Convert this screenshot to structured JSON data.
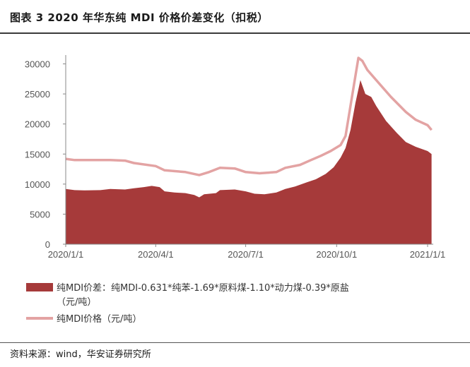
{
  "title": "图表 3 2020 年华东纯 MDI 价格价差变化（扣税）",
  "source": "资料来源：wind，华安证券研究所",
  "chart_data": {
    "type": "area",
    "x_start": "2020/1/1",
    "x_end": "2021/1/1",
    "xticks": [
      "2020/1/1",
      "2020/4/1",
      "2020/7/1",
      "2020/10/1",
      "2021/1/1"
    ],
    "yticks": [
      "0",
      "5000",
      "10000",
      "15000",
      "20000",
      "25000",
      "30000"
    ],
    "ylim": [
      0,
      31000
    ],
    "grid": false,
    "legend_position": "bottom",
    "series": [
      {
        "name": "纯MDI价差：纯MDI-0.631*纯苯-1.69*原料煤-1.10*动力煤-0.39*原盐（元/吨）",
        "legend_line1": "纯MDI价差：纯MDI-0.631*纯苯-1.69*原料煤-1.10*动力煤-0.39*原盐",
        "legend_line2": "（元/吨）",
        "render": "area",
        "color": "#A63A3A",
        "points": [
          [
            "2020/1/1",
            9200
          ],
          [
            "2020/1/10",
            9000
          ],
          [
            "2020/1/20",
            8950
          ],
          [
            "2020/2/5",
            9000
          ],
          [
            "2020/2/15",
            9200
          ],
          [
            "2020/3/1",
            9100
          ],
          [
            "2020/3/10",
            9300
          ],
          [
            "2020/3/20",
            9500
          ],
          [
            "2020/3/28",
            9700
          ],
          [
            "2020/4/5",
            9500
          ],
          [
            "2020/4/10",
            8800
          ],
          [
            "2020/4/20",
            8600
          ],
          [
            "2020/5/1",
            8500
          ],
          [
            "2020/5/10",
            8200
          ],
          [
            "2020/5/15",
            7800
          ],
          [
            "2020/5/20",
            8300
          ],
          [
            "2020/6/1",
            8500
          ],
          [
            "2020/6/5",
            9000
          ],
          [
            "2020/6/20",
            9100
          ],
          [
            "2020/7/1",
            8800
          ],
          [
            "2020/7/10",
            8400
          ],
          [
            "2020/7/20",
            8300
          ],
          [
            "2020/8/1",
            8600
          ],
          [
            "2020/8/10",
            9200
          ],
          [
            "2020/8/20",
            9600
          ],
          [
            "2020/9/1",
            10300
          ],
          [
            "2020/9/10",
            10800
          ],
          [
            "2020/9/20",
            11700
          ],
          [
            "2020/9/28",
            12800
          ],
          [
            "2020/10/5",
            14400
          ],
          [
            "2020/10/10",
            16000
          ],
          [
            "2020/10/15",
            19000
          ],
          [
            "2020/10/20",
            23500
          ],
          [
            "2020/10/25",
            27300
          ],
          [
            "2020/10/30",
            25000
          ],
          [
            "2020/11/5",
            24500
          ],
          [
            "2020/11/10",
            23000
          ],
          [
            "2020/11/20",
            20500
          ],
          [
            "2020/12/1",
            18500
          ],
          [
            "2020/12/10",
            17000
          ],
          [
            "2020/12/20",
            16200
          ],
          [
            "2021/1/1",
            15500
          ],
          [
            "2021/1/5",
            15000
          ]
        ]
      },
      {
        "name": "纯MDI价格（元/吨）",
        "render": "line",
        "color": "#E3A3A3",
        "points": [
          [
            "2020/1/1",
            14200
          ],
          [
            "2020/1/10",
            14000
          ],
          [
            "2020/2/15",
            14000
          ],
          [
            "2020/3/1",
            13900
          ],
          [
            "2020/3/10",
            13500
          ],
          [
            "2020/4/1",
            13000
          ],
          [
            "2020/4/10",
            12300
          ],
          [
            "2020/5/1",
            12000
          ],
          [
            "2020/5/15",
            11500
          ],
          [
            "2020/5/25",
            12000
          ],
          [
            "2020/6/5",
            12700
          ],
          [
            "2020/6/20",
            12600
          ],
          [
            "2020/7/1",
            12000
          ],
          [
            "2020/7/15",
            11800
          ],
          [
            "2020/8/1",
            12000
          ],
          [
            "2020/8/10",
            12700
          ],
          [
            "2020/8/25",
            13200
          ],
          [
            "2020/9/5",
            14000
          ],
          [
            "2020/9/15",
            14700
          ],
          [
            "2020/9/25",
            15500
          ],
          [
            "2020/10/5",
            16500
          ],
          [
            "2020/10/10",
            18000
          ],
          [
            "2020/10/15",
            23000
          ],
          [
            "2020/10/20",
            28000
          ],
          [
            "2020/10/23",
            31000
          ],
          [
            "2020/10/27",
            30500
          ],
          [
            "2020/11/1",
            29000
          ],
          [
            "2020/11/10",
            27300
          ],
          [
            "2020/11/25",
            24500
          ],
          [
            "2020/12/10",
            22000
          ],
          [
            "2020/12/20",
            20700
          ],
          [
            "2021/1/1",
            19800
          ],
          [
            "2021/1/5",
            19000
          ]
        ]
      }
    ]
  }
}
